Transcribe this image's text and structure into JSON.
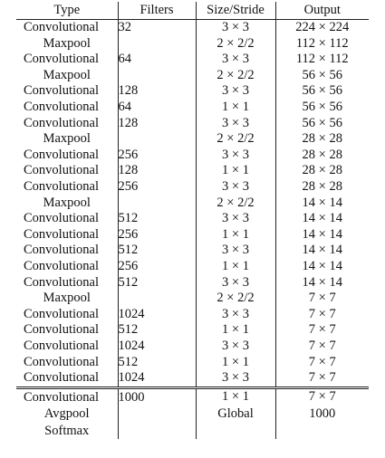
{
  "table": {
    "headers": [
      "Type",
      "Filters",
      "Size/Stride",
      "Output"
    ],
    "rows": [
      {
        "type": "Convolutional",
        "filters": "32",
        "size": "3 × 3",
        "output": "224 × 224"
      },
      {
        "type": "Maxpool",
        "filters": "",
        "size": "2 × 2/2",
        "output": "112 × 112"
      },
      {
        "type": "Convolutional",
        "filters": "64",
        "size": "3 × 3",
        "output": "112 × 112"
      },
      {
        "type": "Maxpool",
        "filters": "",
        "size": "2 × 2/2",
        "output": "56 × 56"
      },
      {
        "type": "Convolutional",
        "filters": "128",
        "size": "3 × 3",
        "output": "56 × 56"
      },
      {
        "type": "Convolutional",
        "filters": "64",
        "size": "1 × 1",
        "output": "56 × 56"
      },
      {
        "type": "Convolutional",
        "filters": "128",
        "size": "3 × 3",
        "output": "56 × 56"
      },
      {
        "type": "Maxpool",
        "filters": "",
        "size": "2 × 2/2",
        "output": "28 × 28"
      },
      {
        "type": "Convolutional",
        "filters": "256",
        "size": "3 × 3",
        "output": "28 × 28"
      },
      {
        "type": "Convolutional",
        "filters": "128",
        "size": "1 × 1",
        "output": "28 × 28"
      },
      {
        "type": "Convolutional",
        "filters": "256",
        "size": "3 × 3",
        "output": "28 × 28"
      },
      {
        "type": "Maxpool",
        "filters": "",
        "size": "2 × 2/2",
        "output": "14 × 14"
      },
      {
        "type": "Convolutional",
        "filters": "512",
        "size": "3 × 3",
        "output": "14 × 14"
      },
      {
        "type": "Convolutional",
        "filters": "256",
        "size": "1 × 1",
        "output": "14 × 14"
      },
      {
        "type": "Convolutional",
        "filters": "512",
        "size": "3 × 3",
        "output": "14 × 14"
      },
      {
        "type": "Convolutional",
        "filters": "256",
        "size": "1 × 1",
        "output": "14 × 14"
      },
      {
        "type": "Convolutional",
        "filters": "512",
        "size": "3 × 3",
        "output": "14 × 14"
      },
      {
        "type": "Maxpool",
        "filters": "",
        "size": "2 × 2/2",
        "output": "7 × 7"
      },
      {
        "type": "Convolutional",
        "filters": "1024",
        "size": "3 × 3",
        "output": "7 × 7"
      },
      {
        "type": "Convolutional",
        "filters": "512",
        "size": "1 × 1",
        "output": "7 × 7"
      },
      {
        "type": "Convolutional",
        "filters": "1024",
        "size": "3 × 3",
        "output": "7 × 7"
      },
      {
        "type": "Convolutional",
        "filters": "512",
        "size": "1 × 1",
        "output": "7 × 7"
      },
      {
        "type": "Convolutional",
        "filters": "1024",
        "size": "3 × 3",
        "output": "7 × 7"
      }
    ],
    "tail_rows": [
      {
        "type": "Convolutional",
        "filters": "1000",
        "size": "1 × 1",
        "output": "7 × 7"
      },
      {
        "type": "Avgpool",
        "filters": "",
        "size": "Global",
        "output": "1000"
      },
      {
        "type": "Softmax",
        "filters": "",
        "size": "",
        "output": ""
      }
    ]
  }
}
